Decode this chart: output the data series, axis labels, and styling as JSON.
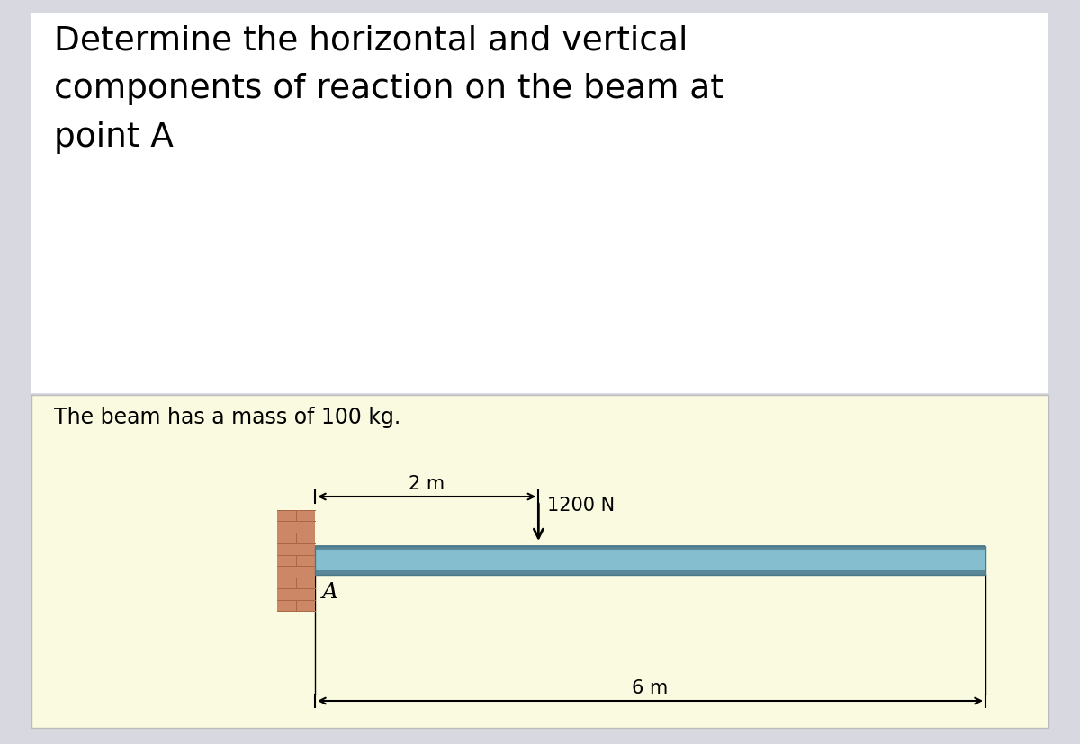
{
  "title_text": "Determine the horizontal and vertical\ncomponents of reaction on the beam at\npoint A",
  "subtitle_text": "The beam has a mass of 100 kg.",
  "bg_color_outer": "#d8d8e0",
  "bg_color_white": "#ffffff",
  "bg_color_inner": "#fafae0",
  "beam_color_top_line": "#6a9aaa",
  "beam_color_mid": "#82b8c8",
  "beam_color_bot_line": "#6a9aaa",
  "wall_color": "#cc8866",
  "force_label": "1200 N",
  "dist_2m_label": "2 m",
  "dist_6m_label": "6 m",
  "point_label": "A",
  "title_fontsize": 27,
  "subtitle_fontsize": 17,
  "diagram_fontsize": 15
}
